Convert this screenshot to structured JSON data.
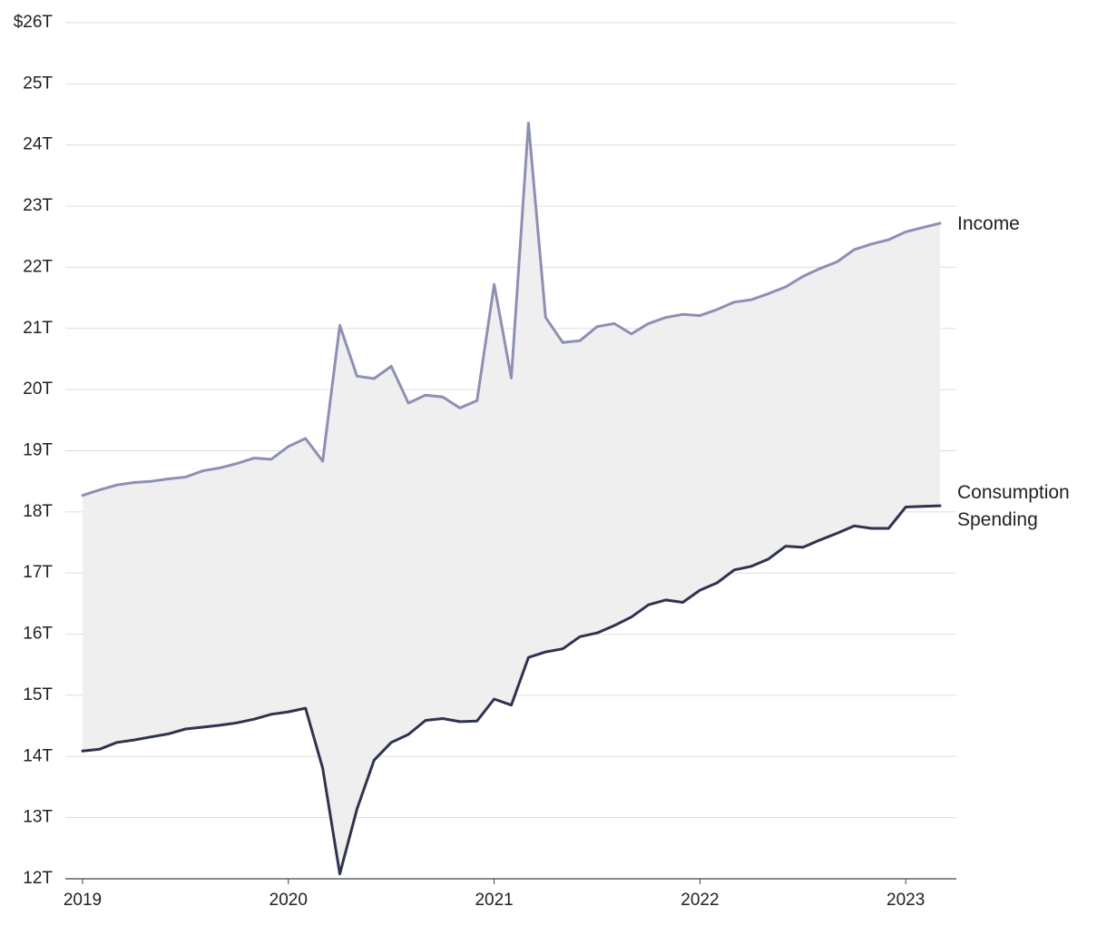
{
  "chart_data": {
    "type": "line",
    "title": "",
    "xlabel": "",
    "ylabel": "",
    "x_ticks": [
      "2019",
      "2020",
      "2021",
      "2022",
      "2023"
    ],
    "y_ticks": [
      "12T",
      "13T",
      "14T",
      "15T",
      "16T",
      "17T",
      "18T",
      "19T",
      "20T",
      "21T",
      "22T",
      "23T",
      "24T",
      "25T",
      "$26T"
    ],
    "ylim": [
      12,
      26
    ],
    "unit": "trillions of dollars",
    "grid": true,
    "fill_between_series": true,
    "x_start": "2019-01",
    "series": [
      {
        "name": "Income",
        "label_lines": [
          "Income"
        ],
        "color": "#8c90b3",
        "values": [
          18.27,
          18.36,
          18.44,
          18.48,
          18.5,
          18.54,
          18.57,
          18.67,
          18.72,
          18.79,
          18.88,
          18.86,
          19.07,
          19.2,
          18.83,
          21.05,
          20.22,
          20.18,
          20.38,
          19.78,
          19.91,
          19.88,
          19.7,
          19.82,
          21.72,
          20.19,
          24.36,
          21.18,
          20.77,
          20.8,
          21.03,
          21.08,
          20.91,
          21.08,
          21.18,
          21.23,
          21.21,
          21.31,
          21.43,
          21.47,
          21.57,
          21.68,
          21.85,
          21.98,
          22.09,
          22.29,
          22.38,
          22.45,
          22.58,
          22.65,
          22.72
        ]
      },
      {
        "name": "Consumption Spending",
        "label_lines": [
          "Consumption",
          "Spending"
        ],
        "color": "#2e3350",
        "values": [
          14.09,
          14.12,
          14.23,
          14.27,
          14.32,
          14.37,
          14.45,
          14.48,
          14.51,
          14.55,
          14.61,
          14.69,
          14.73,
          14.79,
          13.81,
          12.08,
          13.14,
          13.94,
          14.23,
          14.36,
          14.59,
          14.62,
          14.57,
          14.58,
          14.94,
          14.84,
          15.62,
          15.71,
          15.76,
          15.96,
          16.02,
          16.14,
          16.28,
          16.48,
          16.56,
          16.52,
          16.72,
          16.84,
          17.05,
          17.11,
          17.23,
          17.44,
          17.42,
          17.54,
          17.65,
          17.77,
          17.73,
          17.73,
          18.08,
          18.09,
          18.1
        ]
      }
    ]
  }
}
